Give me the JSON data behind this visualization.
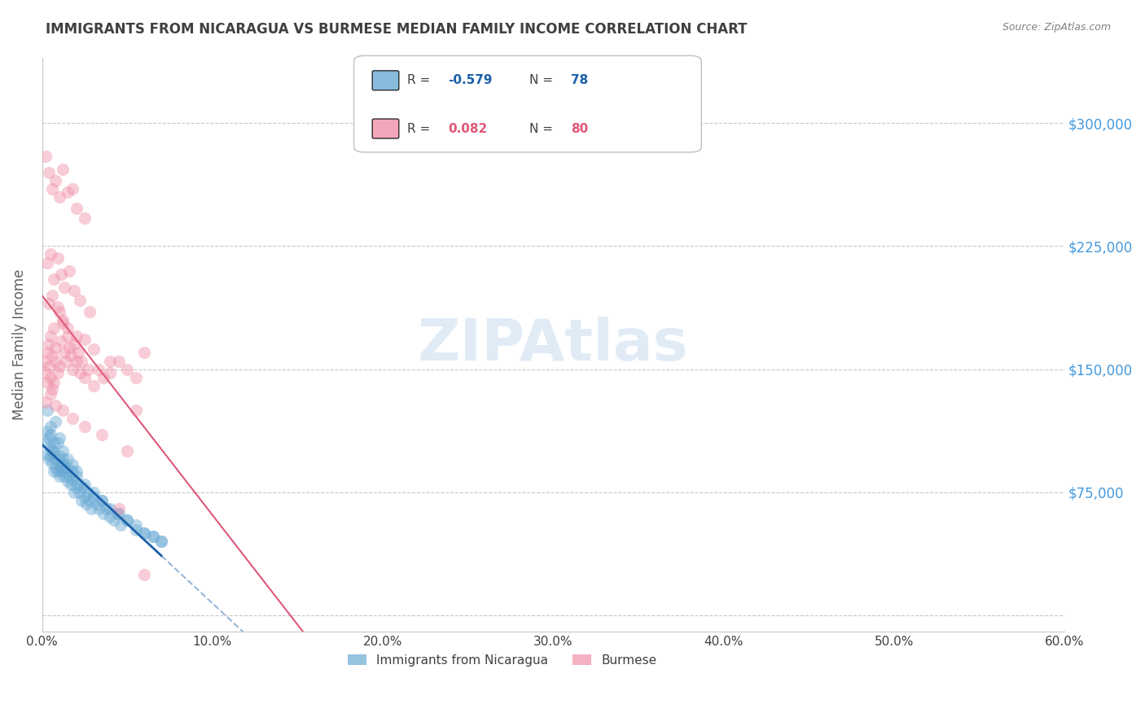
{
  "title": "IMMIGRANTS FROM NICARAGUA VS BURMESE MEDIAN FAMILY INCOME CORRELATION CHART",
  "source": "Source: ZipAtlas.com",
  "ylabel_ticks": [
    0,
    75000,
    150000,
    225000,
    300000
  ],
  "ylabel_labels": [
    "",
    "$75,000",
    "$150,000",
    "$225,000",
    "$300,000"
  ],
  "xlim": [
    0.0,
    0.6
  ],
  "ylim": [
    -10000,
    340000
  ],
  "watermark": "ZIPAtlas",
  "blue_R": "-0.579",
  "blue_N": "78",
  "pink_R": "0.082",
  "pink_N": "80",
  "blue_scatter_x": [
    0.002,
    0.003,
    0.003,
    0.004,
    0.004,
    0.005,
    0.005,
    0.005,
    0.006,
    0.006,
    0.007,
    0.007,
    0.007,
    0.008,
    0.008,
    0.009,
    0.009,
    0.01,
    0.01,
    0.01,
    0.011,
    0.011,
    0.012,
    0.012,
    0.013,
    0.013,
    0.014,
    0.015,
    0.015,
    0.016,
    0.017,
    0.018,
    0.018,
    0.019,
    0.02,
    0.02,
    0.021,
    0.022,
    0.023,
    0.024,
    0.025,
    0.026,
    0.027,
    0.028,
    0.029,
    0.03,
    0.032,
    0.033,
    0.035,
    0.036,
    0.038,
    0.04,
    0.042,
    0.044,
    0.046,
    0.05,
    0.055,
    0.06,
    0.065,
    0.07,
    0.003,
    0.005,
    0.008,
    0.01,
    0.012,
    0.015,
    0.018,
    0.02,
    0.025,
    0.03,
    0.035,
    0.04,
    0.045,
    0.05,
    0.055,
    0.06,
    0.065,
    0.07
  ],
  "blue_scatter_y": [
    105000,
    98000,
    112000,
    95000,
    108000,
    102000,
    97000,
    115000,
    100000,
    93000,
    105000,
    88000,
    99000,
    95000,
    90000,
    105000,
    88000,
    92000,
    97000,
    85000,
    93000,
    88000,
    90000,
    95000,
    85000,
    92000,
    88000,
    82000,
    90000,
    85000,
    80000,
    88000,
    83000,
    75000,
    85000,
    78000,
    80000,
    75000,
    70000,
    78000,
    72000,
    68000,
    75000,
    70000,
    65000,
    72000,
    68000,
    65000,
    70000,
    62000,
    65000,
    60000,
    58000,
    62000,
    55000,
    58000,
    52000,
    50000,
    48000,
    45000,
    125000,
    110000,
    118000,
    108000,
    100000,
    95000,
    92000,
    88000,
    80000,
    75000,
    70000,
    65000,
    62000,
    58000,
    55000,
    50000,
    48000,
    45000
  ],
  "pink_scatter_x": [
    0.001,
    0.002,
    0.003,
    0.003,
    0.004,
    0.004,
    0.005,
    0.005,
    0.006,
    0.006,
    0.007,
    0.007,
    0.008,
    0.008,
    0.009,
    0.01,
    0.01,
    0.011,
    0.012,
    0.013,
    0.014,
    0.015,
    0.016,
    0.017,
    0.018,
    0.019,
    0.02,
    0.021,
    0.022,
    0.023,
    0.025,
    0.027,
    0.03,
    0.033,
    0.036,
    0.04,
    0.045,
    0.05,
    0.055,
    0.06,
    0.002,
    0.004,
    0.006,
    0.008,
    0.01,
    0.012,
    0.015,
    0.018,
    0.02,
    0.025,
    0.003,
    0.005,
    0.007,
    0.009,
    0.011,
    0.013,
    0.016,
    0.019,
    0.022,
    0.028,
    0.004,
    0.006,
    0.009,
    0.012,
    0.015,
    0.02,
    0.025,
    0.03,
    0.04,
    0.055,
    0.002,
    0.005,
    0.008,
    0.012,
    0.018,
    0.025,
    0.035,
    0.05,
    0.06,
    0.045
  ],
  "pink_scatter_y": [
    155000,
    148000,
    160000,
    142000,
    165000,
    152000,
    170000,
    145000,
    158000,
    138000,
    175000,
    142000,
    163000,
    155000,
    148000,
    185000,
    152000,
    167000,
    178000,
    160000,
    155000,
    170000,
    163000,
    158000,
    150000,
    165000,
    155000,
    160000,
    148000,
    155000,
    145000,
    150000,
    140000,
    150000,
    145000,
    148000,
    155000,
    150000,
    125000,
    160000,
    280000,
    270000,
    260000,
    265000,
    255000,
    272000,
    258000,
    260000,
    248000,
    242000,
    215000,
    220000,
    205000,
    218000,
    208000,
    200000,
    210000,
    198000,
    192000,
    185000,
    190000,
    195000,
    188000,
    180000,
    175000,
    170000,
    168000,
    162000,
    155000,
    145000,
    130000,
    135000,
    128000,
    125000,
    120000,
    115000,
    110000,
    100000,
    25000,
    65000
  ],
  "blue_color": "#1a5fa8",
  "pink_color": "#e05878",
  "blue_scatter_color": "#6aaad4",
  "pink_scatter_color": "#f090a8",
  "scatter_alpha": 0.45,
  "scatter_size": 120,
  "bg_color": "#ffffff",
  "grid_color": "#c8c8c8",
  "title_color": "#404040",
  "source_color": "#808080",
  "axis_label_color": "#606060",
  "tick_color_right": "#4499dd",
  "tick_color_bottom": "#404040",
  "legend_label_color": "#404040"
}
